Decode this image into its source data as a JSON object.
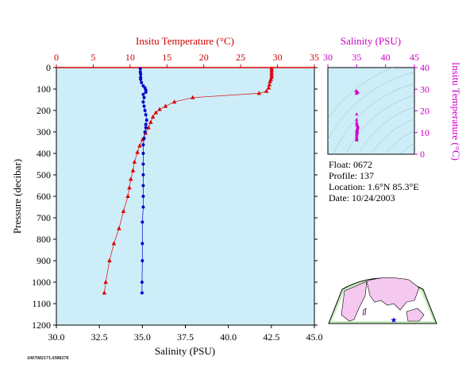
{
  "chart_data": [
    {
      "type": "line",
      "top_axis_label": "Insitu Temperature (°C)",
      "xlabel": "Salinity (PSU)",
      "ylabel": "Pressure (decibar)",
      "temperature_axis": {
        "range": [
          0,
          35
        ],
        "ticks": [
          "0",
          "5",
          "10",
          "15",
          "20",
          "25",
          "30",
          "35"
        ],
        "color": "#cc0000"
      },
      "salinity_axis": {
        "range": [
          30,
          45
        ],
        "ticks": [
          "30.0",
          "32.5",
          "35.0",
          "37.5",
          "40.0",
          "42.5",
          "45.0"
        ]
      },
      "pressure_axis": {
        "range": [
          0,
          1200
        ],
        "inverted": true,
        "ticks": [
          "0",
          "100",
          "200",
          "300",
          "400",
          "500",
          "600",
          "700",
          "800",
          "900",
          "1000",
          "1100",
          "1200"
        ]
      },
      "series": [
        {
          "kind": "temperature",
          "color": "#dd0000",
          "marker": "triangle",
          "points": [
            [
              29.2,
              5
            ],
            [
              29.2,
              15
            ],
            [
              29.2,
              25
            ],
            [
              29.2,
              35
            ],
            [
              29.2,
              45
            ],
            [
              29.1,
              55
            ],
            [
              29.0,
              65
            ],
            [
              28.9,
              80
            ],
            [
              28.8,
              95
            ],
            [
              28.5,
              110
            ],
            [
              27.5,
              120
            ],
            [
              18.5,
              140
            ],
            [
              16.0,
              160
            ],
            [
              14.8,
              180
            ],
            [
              14.0,
              195
            ],
            [
              13.5,
              210
            ],
            [
              13.1,
              230
            ],
            [
              12.8,
              255
            ],
            [
              12.5,
              280
            ],
            [
              12.1,
              305
            ],
            [
              11.7,
              335
            ],
            [
              11.3,
              365
            ],
            [
              11.0,
              395
            ],
            [
              10.6,
              440
            ],
            [
              10.4,
              480
            ],
            [
              10.1,
              520
            ],
            [
              9.9,
              560
            ],
            [
              9.7,
              600
            ],
            [
              9.1,
              670
            ],
            [
              8.5,
              750
            ],
            [
              7.8,
              820
            ],
            [
              7.2,
              900
            ],
            [
              6.7,
              1000
            ],
            [
              6.5,
              1050
            ]
          ]
        },
        {
          "kind": "salinity",
          "color": "#0000cc",
          "marker": "circle",
          "points": [
            [
              34.88,
              5
            ],
            [
              34.88,
              20
            ],
            [
              34.9,
              30
            ],
            [
              34.9,
              45
            ],
            [
              34.9,
              55
            ],
            [
              34.95,
              70
            ],
            [
              35.05,
              85
            ],
            [
              35.15,
              95
            ],
            [
              35.2,
              105
            ],
            [
              35.2,
              115
            ],
            [
              35.05,
              125
            ],
            [
              35.1,
              140
            ],
            [
              35.05,
              160
            ],
            [
              35.1,
              180
            ],
            [
              35.15,
              200
            ],
            [
              35.2,
              220
            ],
            [
              35.25,
              245
            ],
            [
              35.2,
              265
            ],
            [
              35.2,
              280
            ],
            [
              35.15,
              300
            ],
            [
              35.1,
              330
            ],
            [
              35.05,
              360
            ],
            [
              35.05,
              400
            ],
            [
              35.05,
              450
            ],
            [
              35.05,
              500
            ],
            [
              35.05,
              550
            ],
            [
              35.05,
              600
            ],
            [
              35.05,
              650
            ],
            [
              35.0,
              720
            ],
            [
              35.0,
              820
            ],
            [
              35.0,
              900
            ],
            [
              34.98,
              1000
            ],
            [
              34.98,
              1050
            ]
          ]
        }
      ]
    },
    {
      "type": "scatter",
      "title": "Salinity (PSU)",
      "ylabel": "Insitu Temperature (°C)",
      "color": "#cc00cc",
      "xlim": [
        30,
        45
      ],
      "ylim": [
        0,
        40
      ],
      "xticks": [
        "30",
        "35",
        "40",
        "45"
      ],
      "yticks": [
        "0",
        "10",
        "20",
        "30",
        "40"
      ],
      "points": [
        [
          34.9,
          29.2
        ],
        [
          35.0,
          29.0
        ],
        [
          35.1,
          28.7
        ],
        [
          35.2,
          28.5
        ],
        [
          34.95,
          28.0
        ],
        [
          35.0,
          18.5
        ],
        [
          35.0,
          16.0
        ],
        [
          35.0,
          14.8
        ],
        [
          35.0,
          14.0
        ],
        [
          35.1,
          13.5
        ],
        [
          35.1,
          13.1
        ],
        [
          35.2,
          12.8
        ],
        [
          35.2,
          12.5
        ],
        [
          35.15,
          12.1
        ],
        [
          35.1,
          11.7
        ],
        [
          35.05,
          11.3
        ],
        [
          35.05,
          11.0
        ],
        [
          35.05,
          10.6
        ],
        [
          35.05,
          10.4
        ],
        [
          35.05,
          10.1
        ],
        [
          35.05,
          9.9
        ],
        [
          35.05,
          9.7
        ],
        [
          35.0,
          9.1
        ],
        [
          35.0,
          8.5
        ],
        [
          35.0,
          7.8
        ],
        [
          35.0,
          7.2
        ],
        [
          35.0,
          6.7
        ],
        [
          35.0,
          6.5
        ]
      ]
    }
  ],
  "float_info": {
    "float": "Float:  0672",
    "profile": "Profile:  137",
    "location": "Location:  1.6°N  85.3°E",
    "date": "Date:  10/24/2003"
  },
  "footer_id": "1067082171.0388276",
  "colors": {
    "plot_bg": "#cdeef8",
    "land": "#f5c8f0",
    "ocean": "#ffffff",
    "map_frame": "#c8ecc0"
  }
}
